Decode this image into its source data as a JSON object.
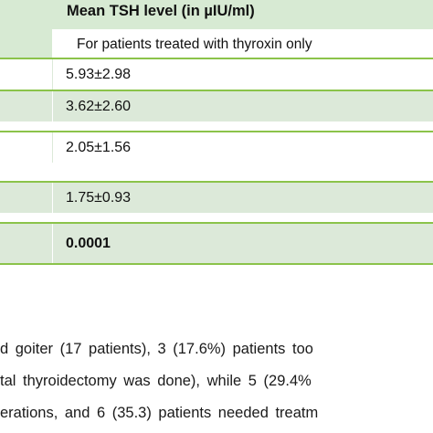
{
  "table": {
    "header": {
      "title": "Mean TSH level (in µIU/ml)",
      "subtitle": "For patients treated with thyroxin only"
    },
    "rows": [
      {
        "value": "5.93±2.98",
        "bold": false
      },
      {
        "value": "3.62±2.60",
        "bold": false
      },
      {
        "value": "2.05±1.56",
        "bold": false
      },
      {
        "value": "1.75±0.93",
        "bold": false
      },
      {
        "value": "0.0001",
        "bold": true
      }
    ]
  },
  "paragraph": {
    "lines": [
      "d goiter (17 patients), 3 (17.6%) patients too",
      "tal thyroidectomy was done), while 5 (29.4%",
      "erations, and 6 (35.3) patients needed treatm"
    ]
  },
  "colors": {
    "header_bg": "#d7ead3",
    "row_shaded": "#dce9d9",
    "rule": "#8bc34a"
  }
}
